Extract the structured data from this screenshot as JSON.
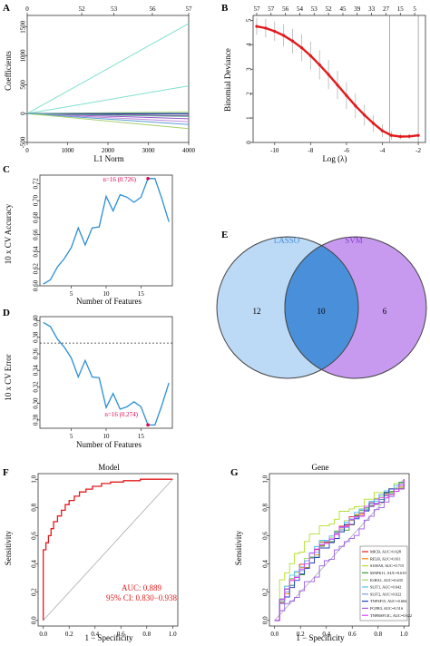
{
  "panels": {
    "A": {
      "letter": "A",
      "xlabel": "L1 Norm",
      "ylabel": "Coefficients",
      "x_ticks": [
        "0",
        "1000",
        "2000",
        "3000",
        "4000"
      ],
      "y_ticks": [
        "-500",
        "0",
        "500",
        "1000",
        "1500"
      ],
      "top_ticks": [
        "0",
        "52",
        "53",
        "56",
        "57"
      ]
    },
    "B": {
      "letter": "B",
      "xlabel": "Log (λ)",
      "ylabel": "Binomial Deviance",
      "x_ticks": [
        "-10",
        "-8",
        "-6",
        "-4",
        "-2"
      ],
      "y_ticks": [
        "0",
        "1",
        "2",
        "3",
        "4",
        "5"
      ],
      "top_ticks": [
        "57",
        "57",
        "56",
        "54",
        "53",
        "52",
        "45",
        "39",
        "33",
        "27",
        "15",
        "5"
      ]
    },
    "C": {
      "letter": "C",
      "xlabel": "Number of Features",
      "ylabel": "10 x CV Accuracy",
      "x_ticks": [
        "5",
        "10",
        "15"
      ],
      "y_ticks": [
        "0.60",
        "0.62",
        "0.64",
        "0.66",
        "0.68",
        "0.70",
        "0.72"
      ],
      "annotation": "n=16 (0.726)"
    },
    "D": {
      "letter": "D",
      "xlabel": "Number of Features",
      "ylabel": "10 x CV Error",
      "x_ticks": [
        "5",
        "10",
        "15"
      ],
      "y_ticks": [
        "0.28",
        "0.30",
        "0.32",
        "0.34",
        "0.36",
        "0.38",
        "0.40"
      ],
      "annotation": "n=16 (0.274)"
    },
    "E": {
      "letter": "E",
      "left_label": "LASSO",
      "right_label": "SVM",
      "left_only": "12",
      "both": "10",
      "right_only": "6"
    },
    "F": {
      "letter": "F",
      "title": "Model",
      "xlabel": "1 − Specificity",
      "ylabel": "Sensitivity",
      "ticks": [
        "0.0",
        "0.2",
        "0.4",
        "0.6",
        "0.8",
        "1.0"
      ],
      "auc_text": "AUC: 0.889",
      "ci_text": "95% CI: 0.830−0.938"
    },
    "G": {
      "letter": "G",
      "title": "Gene",
      "xlabel": "1 − Specificity",
      "ylabel": "Sensitivity",
      "ticks": [
        "0.0",
        "0.2",
        "0.4",
        "0.6",
        "0.8",
        "1.0"
      ]
    }
  },
  "colors": {
    "lasso": "#bcd9f5",
    "svm": "#c79af0",
    "red": "#e31a1c",
    "blue": "#2a8fd6",
    "annotation": "#e0004d"
  },
  "chart_data": [
    {
      "panel": "A",
      "type": "line",
      "xlabel": "L1 Norm",
      "ylabel": "Coefficients",
      "xlim": [
        0,
        4000
      ],
      "ylim": [
        -500,
        1700
      ],
      "series": [
        {
          "color": "#7fe0d0",
          "x": [
            0,
            4000
          ],
          "y": [
            0,
            1560
          ]
        },
        {
          "color": "#7fe0d0",
          "x": [
            0,
            4000
          ],
          "y": [
            0,
            480
          ]
        },
        {
          "color": "#b0e07a",
          "x": [
            0,
            4000
          ],
          "y": [
            0,
            30
          ]
        },
        {
          "color": "#3a6fb0",
          "x": [
            0,
            4000
          ],
          "y": [
            0,
            5
          ]
        },
        {
          "color": "#2e3a8c",
          "x": [
            0,
            4000
          ],
          "y": [
            0,
            -10
          ]
        },
        {
          "color": "#7a2e8c",
          "x": [
            0,
            4000
          ],
          "y": [
            0,
            -40
          ]
        },
        {
          "color": "#9a55c8",
          "x": [
            0,
            4000
          ],
          "y": [
            0,
            -90
          ]
        },
        {
          "color": "#c08ad8",
          "x": [
            0,
            4000
          ],
          "y": [
            0,
            -140
          ]
        },
        {
          "color": "#5a9ed6",
          "x": [
            0,
            4000
          ],
          "y": [
            0,
            -190
          ]
        },
        {
          "color": "#a8d06a",
          "x": [
            0,
            4000
          ],
          "y": [
            0,
            -260
          ]
        },
        {
          "color": "#5ab0a0",
          "x": [
            0,
            4000
          ],
          "y": [
            0,
            -50
          ]
        }
      ]
    },
    {
      "panel": "B",
      "type": "line",
      "xlabel": "Log (λ)",
      "ylabel": "Binomial Deviance",
      "xlim": [
        -11.2,
        -1.6
      ],
      "ylim": [
        0,
        5.2
      ],
      "vlines": [
        -3.6,
        -2.0
      ],
      "x": [
        -11,
        -10.5,
        -10,
        -9.5,
        -9,
        -8.5,
        -8,
        -7.5,
        -7,
        -6.5,
        -6,
        -5.5,
        -5,
        -4.5,
        -4,
        -3.5,
        -3,
        -2.5,
        -2
      ],
      "y": [
        4.75,
        4.68,
        4.55,
        4.38,
        4.15,
        3.88,
        3.55,
        3.18,
        2.78,
        2.35,
        1.92,
        1.5,
        1.12,
        0.78,
        0.48,
        0.29,
        0.24,
        0.25,
        0.29
      ],
      "err": [
        0.35,
        0.38,
        0.4,
        0.45,
        0.5,
        0.55,
        0.58,
        0.6,
        0.6,
        0.58,
        0.55,
        0.5,
        0.42,
        0.34,
        0.26,
        0.18,
        0.12,
        0.1,
        0.1
      ]
    },
    {
      "panel": "C",
      "type": "line",
      "xlabel": "Number of Features",
      "ylabel": "10 x CV Accuracy",
      "xlim": [
        0.5,
        19.5
      ],
      "ylim": [
        0.6,
        0.73
      ],
      "x": [
        1,
        2,
        3,
        4,
        5,
        6,
        7,
        8,
        9,
        10,
        11,
        12,
        13,
        14,
        15,
        16,
        17,
        18,
        19
      ],
      "y": [
        0.602,
        0.607,
        0.622,
        0.632,
        0.645,
        0.668,
        0.648,
        0.668,
        0.669,
        0.705,
        0.688,
        0.707,
        0.704,
        0.698,
        0.704,
        0.726,
        0.726,
        0.702,
        0.675
      ],
      "best": {
        "x": 16,
        "y": 0.726
      }
    },
    {
      "panel": "D",
      "type": "line",
      "xlabel": "Number of Features",
      "ylabel": "10 x CV Error",
      "xlim": [
        0.5,
        19.5
      ],
      "ylim": [
        0.27,
        0.405
      ],
      "hline": 0.373,
      "x": [
        1,
        2,
        3,
        4,
        5,
        6,
        7,
        8,
        9,
        10,
        11,
        12,
        13,
        14,
        15,
        16,
        17,
        18,
        19
      ],
      "y": [
        0.398,
        0.393,
        0.378,
        0.368,
        0.355,
        0.332,
        0.352,
        0.332,
        0.331,
        0.295,
        0.312,
        0.293,
        0.296,
        0.302,
        0.296,
        0.274,
        0.274,
        0.298,
        0.325
      ],
      "best": {
        "x": 16,
        "y": 0.274
      }
    },
    {
      "panel": "E",
      "type": "venn",
      "sets": [
        "LASSO",
        "SVM"
      ],
      "values": {
        "LASSO_only": 12,
        "both": 10,
        "SVM_only": 6
      }
    },
    {
      "panel": "F",
      "type": "line",
      "title": "Model",
      "xlabel": "1 − Specificity",
      "ylabel": "Sensitivity",
      "xlim": [
        0,
        1
      ],
      "ylim": [
        0,
        1
      ],
      "auc": 0.889,
      "ci": [
        0.83,
        0.938
      ],
      "x": [
        0,
        0,
        0.02,
        0.02,
        0.04,
        0.04,
        0.06,
        0.06,
        0.08,
        0.08,
        0.11,
        0.11,
        0.14,
        0.14,
        0.17,
        0.17,
        0.2,
        0.2,
        0.24,
        0.24,
        0.28,
        0.28,
        0.33,
        0.33,
        0.38,
        0.38,
        0.45,
        0.45,
        0.52,
        0.52,
        0.62,
        0.62,
        0.75,
        0.75,
        1.0
      ],
      "y": [
        0,
        0.5,
        0.5,
        0.55,
        0.55,
        0.6,
        0.6,
        0.65,
        0.65,
        0.7,
        0.7,
        0.74,
        0.74,
        0.78,
        0.78,
        0.82,
        0.82,
        0.85,
        0.85,
        0.88,
        0.88,
        0.91,
        0.91,
        0.93,
        0.93,
        0.95,
        0.95,
        0.97,
        0.97,
        0.98,
        0.98,
        0.99,
        0.99,
        1.0,
        1.0
      ]
    },
    {
      "panel": "G",
      "type": "line",
      "title": "Gene",
      "xlabel": "1 − Specificity",
      "ylabel": "Sensitivity",
      "xlim": [
        0,
        1
      ],
      "ylim": [
        0,
        1
      ],
      "series": [
        {
          "name": "MICB, AUC=0.628",
          "color": "#e31a1c",
          "auc": 0.628
        },
        {
          "name": "RELB, AUC=0.611",
          "color": "#ff7f00",
          "auc": 0.611
        },
        {
          "name": "S100A8, AUC=0.715",
          "color": "#b2df2a",
          "auc": 0.715
        },
        {
          "name": "MAPK11, AUC=0.610",
          "color": "#33a02c",
          "auc": 0.61
        },
        {
          "name": "IGHA1, AUC=0.635",
          "color": "#9fd96a",
          "auc": 0.635
        },
        {
          "name": "SLIT1, AUC=0.642",
          "color": "#4fc3f7",
          "auc": 0.642
        },
        {
          "name": "SLIT2, AUC=0.622",
          "color": "#7a9ce0",
          "auc": 0.622
        },
        {
          "name": "TNFSF15, AUC=0.604",
          "color": "#1f3fbf",
          "auc": 0.604
        },
        {
          "name": "FGFR3, AUC=0.516",
          "color": "#9b5de5",
          "auc": 0.516
        },
        {
          "name": "TNFRSF13C, AUC=0.622",
          "color": "#e040fb",
          "auc": 0.622
        }
      ]
    }
  ]
}
